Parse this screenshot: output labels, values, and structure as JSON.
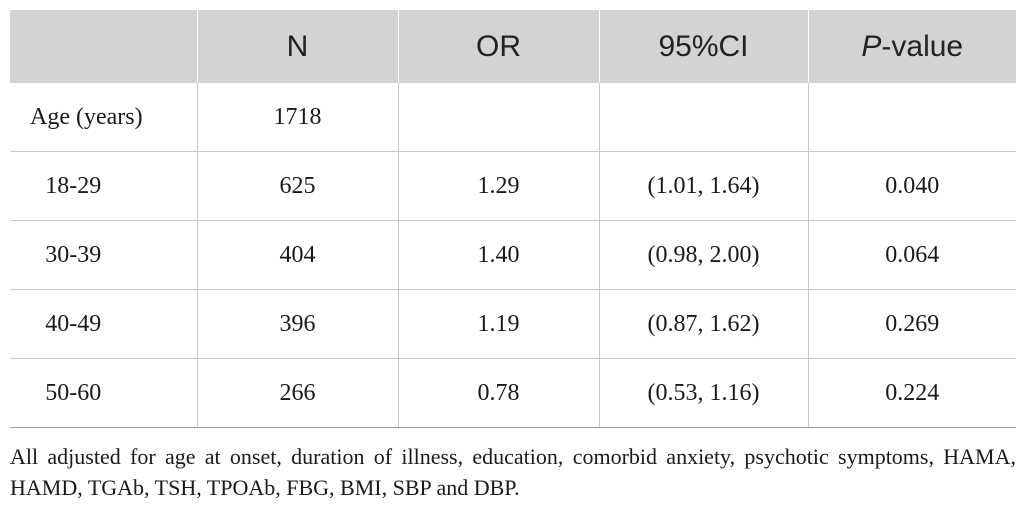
{
  "table": {
    "headers": {
      "col0": "",
      "n": "N",
      "or": "OR",
      "ci": "95%CI",
      "p_italic": "P",
      "p_rest": "-value"
    },
    "rows": [
      {
        "label": "Age (years)",
        "n": "1718",
        "or": "",
        "ci": "",
        "p": ""
      },
      {
        "label": "18-29",
        "n": "625",
        "or": "1.29",
        "ci": "(1.01, 1.64)",
        "p": "0.040"
      },
      {
        "label": "30-39",
        "n": "404",
        "or": "1.40",
        "ci": "(0.98, 2.00)",
        "p": "0.064"
      },
      {
        "label": "40-49",
        "n": "396",
        "or": "1.19",
        "ci": "(0.87, 1.62)",
        "p": "0.269"
      },
      {
        "label": "50-60",
        "n": "266",
        "or": "0.78",
        "ci": "(0.53, 1.16)",
        "p": "0.224"
      }
    ]
  },
  "footnote": "All adjusted for age at onset, duration of illness, education, comorbid anxiety, psychotic symptoms, HAMA, HAMD, TGAb, TSH, TPOAb, FBG, BMI, SBP and DBP."
}
